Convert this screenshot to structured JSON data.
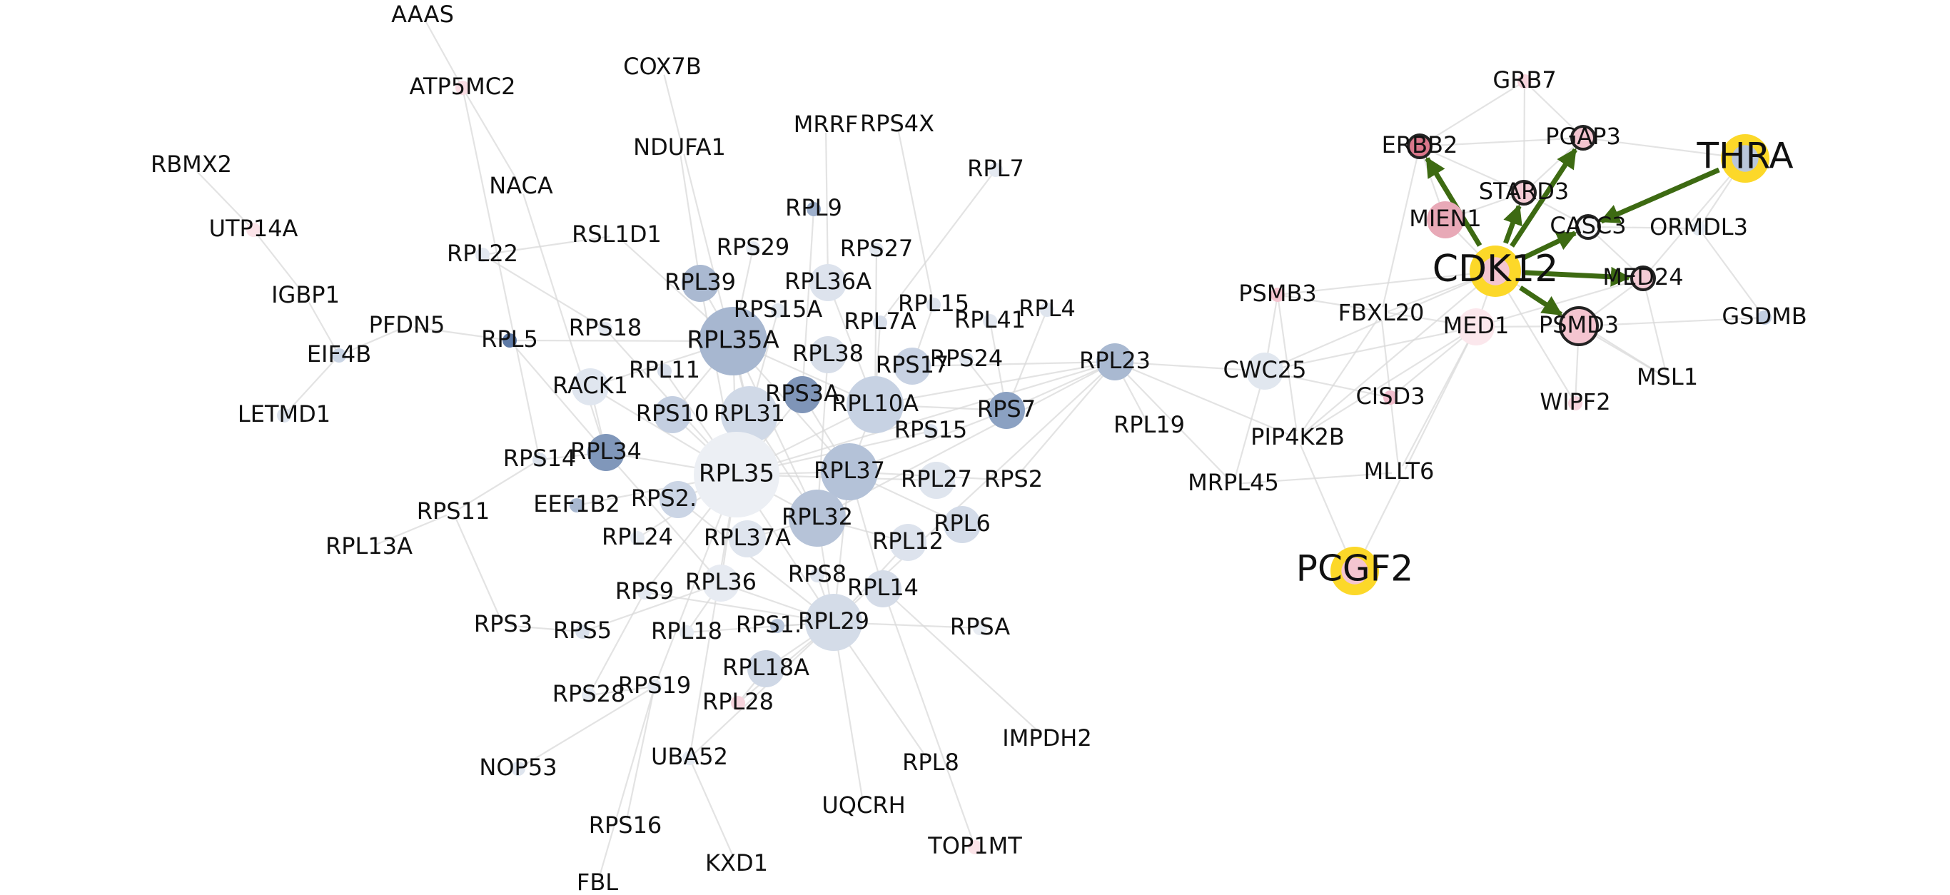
{
  "colors": {
    "edge": "#d9d9d9",
    "arrow": "#3d6a12",
    "highlight": "#fcd829",
    "node_stroke": "#222222"
  },
  "nodes": [
    {
      "id": "AAAS",
      "label": "AAAS",
      "c": "#ffffff",
      "s": "small"
    },
    {
      "id": "ATP5MC2",
      "label": "ATP5MC2",
      "c": "#f9dbe2",
      "s": "small"
    },
    {
      "id": "COX7B",
      "label": "COX7B",
      "c": "#ffffff",
      "s": "small"
    },
    {
      "id": "RBMX2",
      "label": "RBMX2",
      "c": "#ffffff",
      "s": "small"
    },
    {
      "id": "NDUFA1",
      "label": "NDUFA1",
      "c": "#ffffff",
      "s": "small"
    },
    {
      "id": "MRRF",
      "label": "MRRF",
      "c": "#ffffff",
      "s": "small"
    },
    {
      "id": "RPS4X",
      "label": "RPS4X",
      "c": "#ffffff",
      "s": "small"
    },
    {
      "id": "NACA",
      "label": "NACA",
      "c": "#ffffff",
      "s": "small"
    },
    {
      "id": "RPL7",
      "label": "RPL7",
      "c": "#e4e9f1",
      "s": "small"
    },
    {
      "id": "UTP14A",
      "label": "UTP14A",
      "c": "#fbe3e8",
      "s": "small"
    },
    {
      "id": "RPL9",
      "label": "RPL9",
      "c": "#9eb0cc",
      "s": "small"
    },
    {
      "id": "RSL1D1",
      "label": "RSL1D1",
      "c": "#ffffff",
      "s": "small"
    },
    {
      "id": "RPL22",
      "label": "RPL22",
      "c": "#e3e8f0",
      "s": "small"
    },
    {
      "id": "RPS29",
      "label": "RPS29",
      "c": "#e6ebf2",
      "s": "small"
    },
    {
      "id": "RPS27",
      "label": "RPS27",
      "c": "#e3e8f0",
      "s": "small"
    },
    {
      "id": "IGBP1",
      "label": "IGBP1",
      "c": "#ffffff",
      "s": "small"
    },
    {
      "id": "RPL39",
      "label": "RPL39",
      "c": "#aab9d1",
      "s": "medium"
    },
    {
      "id": "RPL36A",
      "label": "RPL36A",
      "c": "#dde3ed",
      "s": "medium"
    },
    {
      "id": "RPS15A",
      "label": "RPS15A",
      "c": "#e1e7ef",
      "s": "small"
    },
    {
      "id": "RPL15",
      "label": "RPL15",
      "c": "#dde3ed",
      "s": "small"
    },
    {
      "id": "RPL4",
      "label": "RPL4",
      "c": "#dfe5ee",
      "s": "small"
    },
    {
      "id": "PFDN5",
      "label": "PFDN5",
      "c": "#ffffff",
      "s": "small"
    },
    {
      "id": "EIF4B",
      "label": "EIF4B",
      "c": "#c9d4e4",
      "s": "small"
    },
    {
      "id": "RPL5",
      "label": "RPL5",
      "c": "#5e7aa6",
      "s": "small"
    },
    {
      "id": "RPS18",
      "label": "RPS18",
      "c": "#e3e8f0",
      "s": "small"
    },
    {
      "id": "RPL35A",
      "label": "RPL35A",
      "c": "#a7b7d0",
      "s": "xlarge"
    },
    {
      "id": "RPL7A",
      "label": "RPL7A",
      "c": "#d6dde9",
      "s": "small"
    },
    {
      "id": "RPL41",
      "label": "RPL41",
      "c": "#e3e8f0",
      "s": "small"
    },
    {
      "id": "RPL38",
      "label": "RPL38",
      "c": "#d7dee9",
      "s": "medium"
    },
    {
      "id": "RPS24",
      "label": "RPS24",
      "c": "#dfe5ee",
      "s": "small"
    },
    {
      "id": "RPS17",
      "label": "RPS17",
      "c": "#c8d2e3",
      "s": "medium"
    },
    {
      "id": "RPL11",
      "label": "RPL11",
      "c": "#d5dce8",
      "s": "small"
    },
    {
      "id": "LETMD1",
      "label": "LETMD1",
      "c": "#dde3ed",
      "s": "small"
    },
    {
      "id": "RACK1",
      "label": "RACK1",
      "c": "#e0e6ef",
      "s": "medium"
    },
    {
      "id": "RPS3A",
      "label": "RPS3A",
      "c": "#7f95b8",
      "s": "medium"
    },
    {
      "id": "RPL10A",
      "label": "RPL10A",
      "c": "#c7d2e3",
      "s": "large"
    },
    {
      "id": "RPS10",
      "label": "RPS10",
      "c": "#c4cfe1",
      "s": "medium"
    },
    {
      "id": "RPL31",
      "label": "RPL31",
      "c": "#d0d9e7",
      "s": "large"
    },
    {
      "id": "RPS7",
      "label": "RPS7",
      "c": "#8ba1c2",
      "s": "medium"
    },
    {
      "id": "RPL23",
      "label": "RPL23",
      "c": "#a9b9d1",
      "s": "medium"
    },
    {
      "id": "RPL34",
      "label": "RPL34",
      "c": "#8097ba",
      "s": "medium"
    },
    {
      "id": "RPS14",
      "label": "RPS14",
      "c": "#dae1eb",
      "s": "small"
    },
    {
      "id": "RPS15",
      "label": "RPS15",
      "c": "#dce3ed",
      "s": "small"
    },
    {
      "id": "RPL35",
      "label": "RPL35",
      "c": "#eceff4",
      "s": "xxlarge"
    },
    {
      "id": "RPL37",
      "label": "RPL37",
      "c": "#b4c2d8",
      "s": "large"
    },
    {
      "id": "RPL27",
      "label": "RPL27",
      "c": "#dfe5ee",
      "s": "medium"
    },
    {
      "id": "RPS2",
      "label": "RPS2",
      "c": "#ffffff",
      "s": "small"
    },
    {
      "id": "RPL19",
      "label": "RPL19",
      "c": "#ffffff",
      "s": "small"
    },
    {
      "id": "RPS11",
      "label": "RPS11",
      "c": "#ffffff",
      "s": "small"
    },
    {
      "id": "EEF1B2",
      "label": "EEF1B2",
      "c": "#a8b8d0",
      "s": "small"
    },
    {
      "id": "RPS2_",
      "label": "RPS2.",
      "c": "#cbd5e5",
      "s": "medium"
    },
    {
      "id": "RPL32",
      "label": "RPL32",
      "c": "#b6c3d8",
      "s": "large"
    },
    {
      "id": "RPL6",
      "label": "RPL6",
      "c": "#d3dbe8",
      "s": "medium"
    },
    {
      "id": "RPL13A",
      "label": "RPL13A",
      "c": "#ffffff",
      "s": "small"
    },
    {
      "id": "RPL24",
      "label": "RPL24",
      "c": "#e5eaf1",
      "s": "small"
    },
    {
      "id": "RPL37A",
      "label": "RPL37A",
      "c": "#dfe5ee",
      "s": "medium"
    },
    {
      "id": "RPL12",
      "label": "RPL12",
      "c": "#dde3ed",
      "s": "medium"
    },
    {
      "id": "RPS8",
      "label": "RPS8",
      "c": "#dde3ed",
      "s": "small"
    },
    {
      "id": "RPL36",
      "label": "RPL36",
      "c": "#e7ebf2",
      "s": "medium"
    },
    {
      "id": "RPL14",
      "label": "RPL14",
      "c": "#d5dce8",
      "s": "medium"
    },
    {
      "id": "RPS9",
      "label": "RPS9",
      "c": "#e3e8f0",
      "s": "small"
    },
    {
      "id": "RPS3",
      "label": "RPS3",
      "c": "#ffffff",
      "s": "small"
    },
    {
      "id": "RPS5",
      "label": "RPS5",
      "c": "#d9e0eb",
      "s": "small"
    },
    {
      "id": "RPL18",
      "label": "RPL18",
      "c": "#e6ebf2",
      "s": "small"
    },
    {
      "id": "RPS1x",
      "label": "RPS1.",
      "c": "#b8c5da",
      "s": "small"
    },
    {
      "id": "RPL29",
      "label": "RPL29",
      "c": "#d4dce8",
      "s": "large"
    },
    {
      "id": "RPSA",
      "label": "RPSA",
      "c": "#e8ecf2",
      "s": "small"
    },
    {
      "id": "RPL18A",
      "label": "RPL18A",
      "c": "#cfd8e6",
      "s": "medium"
    },
    {
      "id": "RPS19",
      "label": "RPS19",
      "c": "#e4e9f1",
      "s": "small"
    },
    {
      "id": "RPS28",
      "label": "RPS28",
      "c": "#e4e9f1",
      "s": "small"
    },
    {
      "id": "RPL28",
      "label": "RPL28",
      "c": "#f6d3dc",
      "s": "small"
    },
    {
      "id": "IMPDH2",
      "label": "IMPDH2",
      "c": "#ffffff",
      "s": "small"
    },
    {
      "id": "UBA52",
      "label": "UBA52",
      "c": "#e6ebf2",
      "s": "small"
    },
    {
      "id": "NOP53",
      "label": "NOP53",
      "c": "#dfe5ee",
      "s": "small"
    },
    {
      "id": "RPL8",
      "label": "RPL8",
      "c": "#ffffff",
      "s": "small"
    },
    {
      "id": "UQCRH",
      "label": "UQCRH",
      "c": "#ffffff",
      "s": "small"
    },
    {
      "id": "RPS16",
      "label": "RPS16",
      "c": "#ffffff",
      "s": "small"
    },
    {
      "id": "TOP1MT",
      "label": "TOP1MT",
      "c": "#fbe3e8",
      "s": "small"
    },
    {
      "id": "KXD1",
      "label": "KXD1",
      "c": "#ffffff",
      "s": "small"
    },
    {
      "id": "FBL",
      "label": "FBL",
      "c": "#ffffff",
      "s": "small"
    },
    {
      "id": "PSMB3",
      "label": "PSMB3",
      "c": "#f4c5d0",
      "s": "small"
    },
    {
      "id": "CWC25",
      "label": "CWC25",
      "c": "#e1e7ef",
      "s": "medium"
    },
    {
      "id": "PIP4K2B",
      "label": "PIP4K2B",
      "c": "#ffffff",
      "s": "small"
    },
    {
      "id": "MRPL45",
      "label": "MRPL45",
      "c": "#ffffff",
      "s": "small"
    },
    {
      "id": "FBXL20",
      "label": "FBXL20",
      "c": "#ffffff",
      "s": "small"
    },
    {
      "id": "CISD3",
      "label": "CISD3",
      "c": "#f0bccb",
      "s": "small"
    },
    {
      "id": "MLLT6",
      "label": "MLLT6",
      "c": "#ffffff",
      "s": "small"
    },
    {
      "id": "PCGF2",
      "label": "PCGF2",
      "c": "#f4c5d0",
      "s": "large",
      "highlight": true
    },
    {
      "id": "MED1",
      "label": "MED1",
      "c": "#fbe7ec",
      "s": "medium"
    },
    {
      "id": "MIEN1",
      "label": "MIEN1",
      "c": "#e8a9b7",
      "s": "medium"
    },
    {
      "id": "GRB7",
      "label": "GRB7",
      "c": "#f6d3dc",
      "s": "small"
    },
    {
      "id": "ERBB2",
      "label": "ERBB2",
      "c": "#d9768a",
      "s": "smallring"
    },
    {
      "id": "PGAP3",
      "label": "PGAP3",
      "c": "#f2c4cf",
      "s": "smallring"
    },
    {
      "id": "STARD3",
      "label": "STARD3",
      "c": "#f4cbd5",
      "s": "smallring"
    },
    {
      "id": "THRA",
      "label": "THRA",
      "c": "#b9c6da",
      "s": "large",
      "highlight": true
    },
    {
      "id": "CASC3",
      "label": "CASC3",
      "c": "#f7f7fa",
      "s": "smallring"
    },
    {
      "id": "ORMDL3",
      "label": "ORMDL3",
      "c": "#e1e7ef",
      "s": "small"
    },
    {
      "id": "CDK12",
      "label": "CDK12",
      "c": "#f4c5d0",
      "s": "large",
      "highlight": true
    },
    {
      "id": "MED24",
      "label": "MED24",
      "c": "#f4cbd5",
      "s": "smallring"
    },
    {
      "id": "GSDMB",
      "label": "GSDMB",
      "c": "#c1cde0",
      "s": "small"
    },
    {
      "id": "PSMD3",
      "label": "PSMD3",
      "c": "#f4c5d0",
      "s": "mediumring"
    },
    {
      "id": "MSL1",
      "label": "MSL1",
      "c": "#ffffff",
      "s": "small"
    },
    {
      "id": "WIPF2",
      "label": "WIPF2",
      "c": "#f6d3dc",
      "s": "small"
    }
  ],
  "edges": [
    [
      "AAAS",
      "ATP5MC2"
    ],
    [
      "ATP5MC2",
      "NACA"
    ],
    [
      "ATP5MC2",
      "RPS14"
    ],
    [
      "COX7B",
      "RPL31"
    ],
    [
      "NDUFA1",
      "RPL39"
    ],
    [
      "MRRF",
      "RPL36A"
    ],
    [
      "RPS4X",
      "RPL15"
    ],
    [
      "RPL7",
      "RPL7A"
    ],
    [
      "RBMX2",
      "UTP14A"
    ],
    [
      "UTP14A",
      "IGBP1"
    ],
    [
      "IGBP1",
      "EIF4B"
    ],
    [
      "EIF4B",
      "PFDN5"
    ],
    [
      "EIF4B",
      "LETMD1"
    ],
    [
      "NACA",
      "RPL34"
    ],
    [
      "RPL22",
      "RSL1D1"
    ],
    [
      "RPL22",
      "RPS18"
    ],
    [
      "RSL1D1",
      "RPL35A"
    ],
    [
      "RPL9",
      "RPS3A"
    ],
    [
      "RPS29",
      "RPL35A"
    ],
    [
      "RPS27",
      "RPL10A"
    ],
    [
      "RPL39",
      "RPL35A"
    ],
    [
      "RPL39",
      "RPL35"
    ],
    [
      "RPL36A",
      "RPL10A"
    ],
    [
      "RPS15A",
      "RPL31"
    ],
    [
      "RPL15",
      "RPS17"
    ],
    [
      "RPL4",
      "RPS7"
    ],
    [
      "PFDN5",
      "RPL5"
    ],
    [
      "RPL5",
      "RPL35A"
    ],
    [
      "RPL5",
      "RPL34"
    ],
    [
      "RPS18",
      "RPL35"
    ],
    [
      "RPL35A",
      "RPL35"
    ],
    [
      "RPL35A",
      "RPL10A"
    ],
    [
      "RPL35A",
      "RPL37"
    ],
    [
      "RPL35A",
      "RPL32"
    ],
    [
      "RPL35A",
      "RPL31"
    ],
    [
      "RPL35A",
      "RPS10"
    ],
    [
      "RPL35A",
      "RACK1"
    ],
    [
      "RPL7A",
      "RPL10A"
    ],
    [
      "RPL41",
      "RPS7"
    ],
    [
      "RPL38",
      "RPL32"
    ],
    [
      "RPS24",
      "RPS7"
    ],
    [
      "RPS17",
      "RPL23"
    ],
    [
      "RPL11",
      "RPL35"
    ],
    [
      "RACK1",
      "RPL35"
    ],
    [
      "RACK1",
      "RPL34"
    ],
    [
      "RPS3A",
      "RPL35"
    ],
    [
      "RPS3A",
      "RPL37"
    ],
    [
      "RPL10A",
      "RPL35"
    ],
    [
      "RPL10A",
      "RPL37"
    ],
    [
      "RPL10A",
      "RPL23"
    ],
    [
      "RPL10A",
      "RPS7"
    ],
    [
      "RPS10",
      "RPL35"
    ],
    [
      "RPL31",
      "RPL35"
    ],
    [
      "RPL31",
      "RPL32"
    ],
    [
      "RPS7",
      "RPL23"
    ],
    [
      "RPS7",
      "RPL37"
    ],
    [
      "RPL23",
      "RPL35"
    ],
    [
      "RPL23",
      "RPL32"
    ],
    [
      "RPL23",
      "RPL29"
    ],
    [
      "RPL23",
      "CWC25"
    ],
    [
      "RPL23",
      "MRPL45"
    ],
    [
      "RPL23",
      "PIP4K2B"
    ],
    [
      "RPL34",
      "RPL35"
    ],
    [
      "RPL34",
      "RPS14"
    ],
    [
      "RPL34",
      "RPL36"
    ],
    [
      "RPS14",
      "RPS11"
    ],
    [
      "RPS11",
      "RPL13A"
    ],
    [
      "RPS11",
      "RPS3"
    ],
    [
      "RPS15",
      "RPL35"
    ],
    [
      "RPL35",
      "RPL37"
    ],
    [
      "RPL35",
      "RPL32"
    ],
    [
      "RPL35",
      "RPL29"
    ],
    [
      "RPL35",
      "RPL36"
    ],
    [
      "RPL35",
      "RPS9"
    ],
    [
      "RPL35",
      "EEF1B2"
    ],
    [
      "RPL37",
      "RPL32"
    ],
    [
      "RPL37",
      "RPL29"
    ],
    [
      "RPL27",
      "RPL35"
    ],
    [
      "RPS2",
      "RPL37"
    ],
    [
      "RPS2",
      "RPL23"
    ],
    [
      "RPL19",
      "RPL23"
    ],
    [
      "RPS2_",
      "RPL35"
    ],
    [
      "RPS2_",
      "RPL29"
    ],
    [
      "RPL32",
      "RPL29"
    ],
    [
      "RPL32",
      "RPL12"
    ],
    [
      "RPL6",
      "RPL37"
    ],
    [
      "RPL24",
      "RPL35"
    ],
    [
      "RPL37A",
      "RPL32"
    ],
    [
      "RPL12",
      "RPL29"
    ],
    [
      "RPS8",
      "RPL29"
    ],
    [
      "RPL36",
      "RPL29"
    ],
    [
      "RPL36",
      "RPL18"
    ],
    [
      "RPL14",
      "RPL37"
    ],
    [
      "RPS9",
      "RPL29"
    ],
    [
      "RPS9",
      "RPS28"
    ],
    [
      "RPS3",
      "RPS5"
    ],
    [
      "RPS5",
      "RPL36"
    ],
    [
      "RPL18",
      "RPL29"
    ],
    [
      "RPS1x",
      "RPL29"
    ],
    [
      "RPL29",
      "RPSA"
    ],
    [
      "RPL29",
      "UQCRH"
    ],
    [
      "RPL29",
      "RPL8"
    ],
    [
      "RPL18A",
      "RPL29"
    ],
    [
      "RPS19",
      "RPL35"
    ],
    [
      "RPS28",
      "RPS19"
    ],
    [
      "RPL28",
      "RPL18A"
    ],
    [
      "RPL28",
      "RPL29"
    ],
    [
      "IMPDH2",
      "RPL14"
    ],
    [
      "UBA52",
      "RPL35"
    ],
    [
      "UBA52",
      "RPL29"
    ],
    [
      "UBA52",
      "KXD1"
    ],
    [
      "NOP53",
      "RPS19"
    ],
    [
      "RPS16",
      "RPS19"
    ],
    [
      "FBL",
      "RPS19"
    ],
    [
      "TOP1MT",
      "RPL14"
    ],
    [
      "PSMB3",
      "CWC25"
    ],
    [
      "PSMB3",
      "PIP4K2B"
    ],
    [
      "PSMB3",
      "MED1"
    ],
    [
      "PSMB3",
      "CDK12"
    ],
    [
      "CWC25",
      "MRPL45"
    ],
    [
      "CWC25",
      "MED1"
    ],
    [
      "CWC25",
      "CDK12"
    ],
    [
      "CWC25",
      "CISD3"
    ],
    [
      "PIP4K2B",
      "PCGF2"
    ],
    [
      "PIP4K2B",
      "FBXL20"
    ],
    [
      "PIP4K2B",
      "MED1"
    ],
    [
      "PIP4K2B",
      "CDK12"
    ],
    [
      "FBXL20",
      "CDK12"
    ],
    [
      "FBXL20",
      "ERBB2"
    ],
    [
      "FBXL20",
      "MLLT6"
    ],
    [
      "CISD3",
      "MED1"
    ],
    [
      "MLLT6",
      "MED1"
    ],
    [
      "MLLT6",
      "MRPL45"
    ],
    [
      "PCGF2",
      "MED1"
    ],
    [
      "MED1",
      "CDK12"
    ],
    [
      "MED1",
      "MED24"
    ],
    [
      "MED1",
      "PSMD3"
    ],
    [
      "MIEN1",
      "ERBB2"
    ],
    [
      "MIEN1",
      "STARD3"
    ],
    [
      "MIEN1",
      "CDK12"
    ],
    [
      "GRB7",
      "ERBB2"
    ],
    [
      "GRB7",
      "PGAP3"
    ],
    [
      "GRB7",
      "STARD3"
    ],
    [
      "ERBB2",
      "PGAP3"
    ],
    [
      "ERBB2",
      "STARD3"
    ],
    [
      "PGAP3",
      "STARD3"
    ],
    [
      "PGAP3",
      "THRA"
    ],
    [
      "STARD3",
      "CASC3"
    ],
    [
      "THRA",
      "MED24"
    ],
    [
      "THRA",
      "ORMDL3"
    ],
    [
      "CASC3",
      "ORMDL3"
    ],
    [
      "CASC3",
      "MED24"
    ],
    [
      "ORMDL3",
      "GSDMB"
    ],
    [
      "MED24",
      "PSMD3"
    ],
    [
      "MED24",
      "MSL1"
    ],
    [
      "PSMD3",
      "WIPF2"
    ],
    [
      "PSMD3",
      "MSL1"
    ],
    [
      "PSMD3",
      "GSDMB"
    ],
    [
      "CDK12",
      "WIPF2"
    ],
    [
      "CDK12",
      "MSL1"
    ]
  ],
  "arrows": [
    [
      "CDK12",
      "ERBB2"
    ],
    [
      "CDK12",
      "PGAP3"
    ],
    [
      "CDK12",
      "STARD3"
    ],
    [
      "CDK12",
      "CASC3"
    ],
    [
      "CDK12",
      "MED24"
    ],
    [
      "CDK12",
      "PSMD3"
    ],
    [
      "THRA",
      "CASC3"
    ]
  ]
}
